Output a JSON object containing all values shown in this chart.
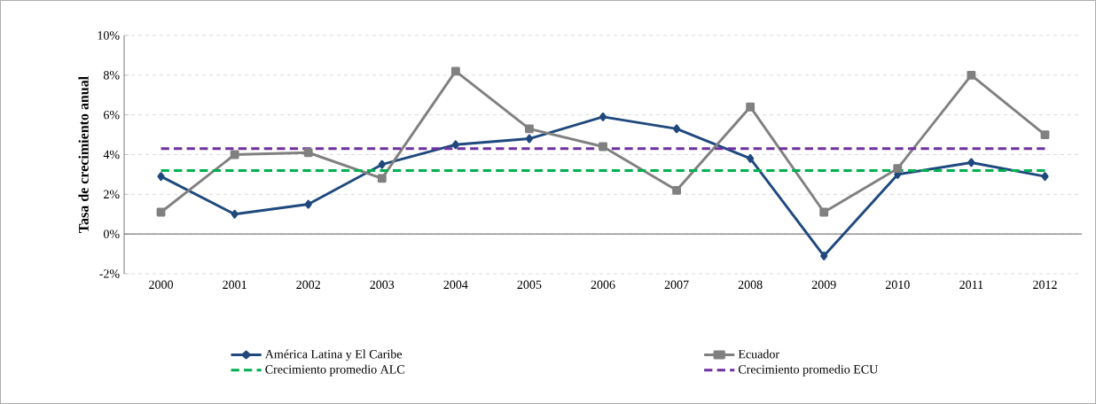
{
  "chart_data": {
    "type": "line",
    "ylabel": "Tasa de crecimiento anual",
    "categories": [
      "2000",
      "2001",
      "2002",
      "2003",
      "2004",
      "2005",
      "2006",
      "2007",
      "2008",
      "2009",
      "2010",
      "2011",
      "2012"
    ],
    "series": [
      {
        "name": "América Latina y El Caribe",
        "color": "#1f497d",
        "marker": "diamond",
        "line_style": "solid",
        "values": [
          2.9,
          1.0,
          1.5,
          3.5,
          4.5,
          4.8,
          5.9,
          5.3,
          3.8,
          -1.1,
          3.0,
          3.6,
          2.9
        ]
      },
      {
        "name": "Ecuador",
        "color": "#808080",
        "marker": "square",
        "line_style": "solid",
        "values": [
          1.1,
          4.0,
          4.1,
          2.8,
          8.2,
          5.3,
          4.4,
          2.2,
          6.4,
          1.1,
          3.3,
          8.0,
          5.0
        ]
      },
      {
        "name": "Crecimiento promedio ALC",
        "color": "#00b050",
        "marker": "none",
        "line_style": "dashed",
        "values": [
          3.2,
          3.2,
          3.2,
          3.2,
          3.2,
          3.2,
          3.2,
          3.2,
          3.2,
          3.2,
          3.2,
          3.2,
          3.2
        ]
      },
      {
        "name": "Crecimiento promedio ECU",
        "color": "#7030a0",
        "marker": "none",
        "line_style": "dashed",
        "values": [
          4.3,
          4.3,
          4.3,
          4.3,
          4.3,
          4.3,
          4.3,
          4.3,
          4.3,
          4.3,
          4.3,
          4.3,
          4.3
        ]
      }
    ],
    "ylim": [
      -2,
      10
    ],
    "yticks": [
      {
        "value": -2,
        "label": "-2%"
      },
      {
        "value": 0,
        "label": "0%"
      },
      {
        "value": 2,
        "label": "2%"
      },
      {
        "value": 4,
        "label": "4%"
      },
      {
        "value": 6,
        "label": "6%"
      },
      {
        "value": 8,
        "label": "8%"
      },
      {
        "value": 10,
        "label": "10%"
      }
    ],
    "grid": "y",
    "legend": "bottom"
  }
}
